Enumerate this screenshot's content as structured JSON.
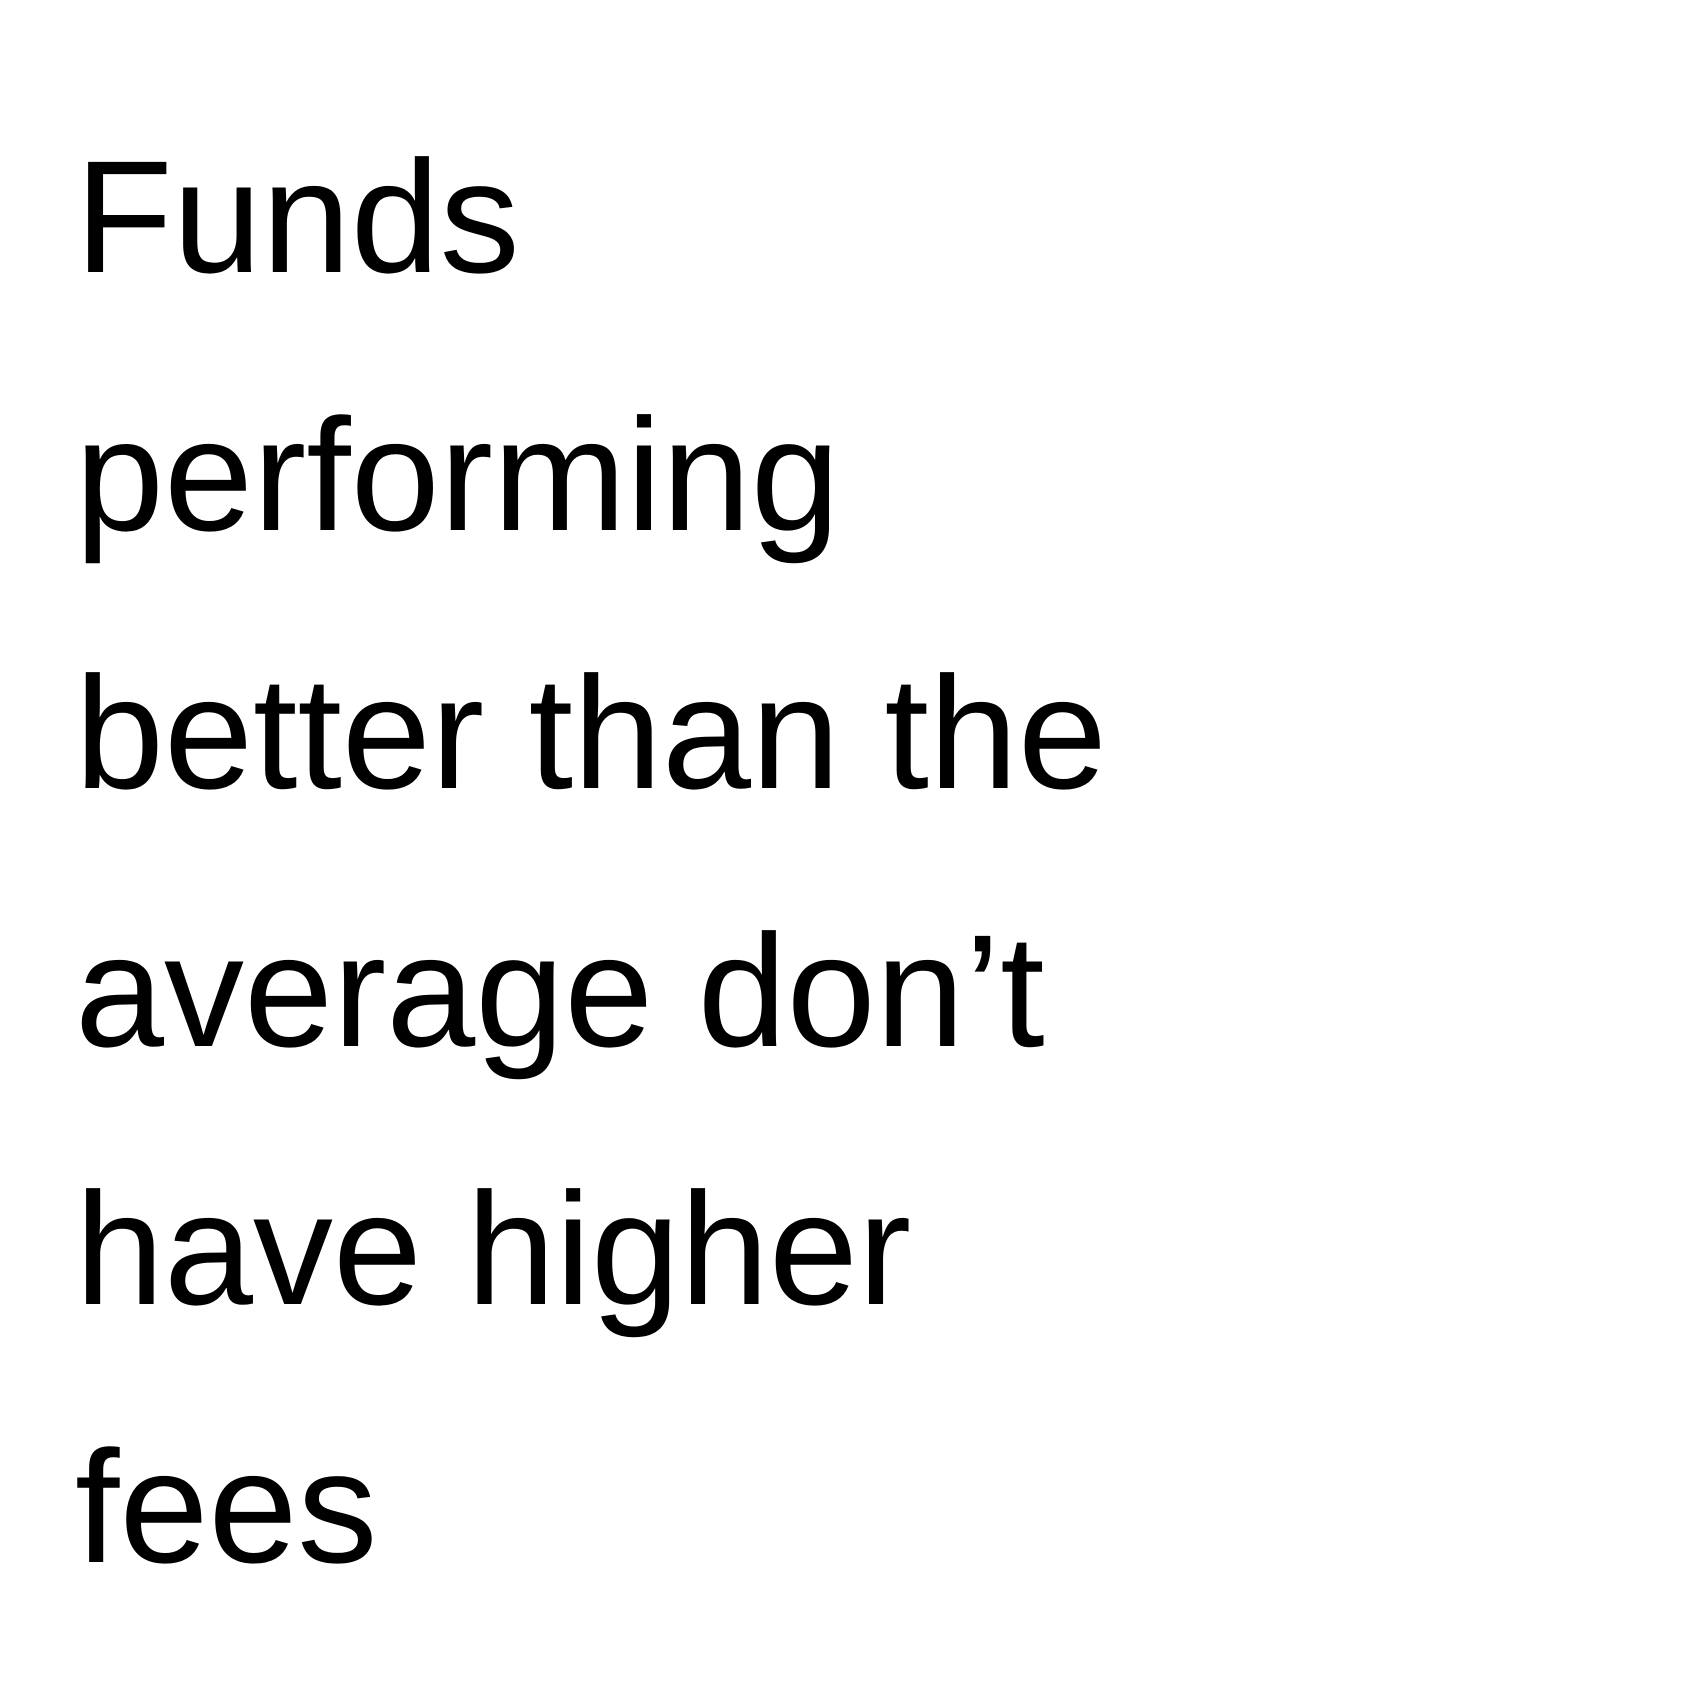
{
  "slide": {
    "lines": [
      "Funds",
      "performing",
      "better than the",
      "average don’t",
      "have higher",
      "fees"
    ]
  },
  "colors": {
    "background": "#ffffff",
    "text": "#000000"
  }
}
